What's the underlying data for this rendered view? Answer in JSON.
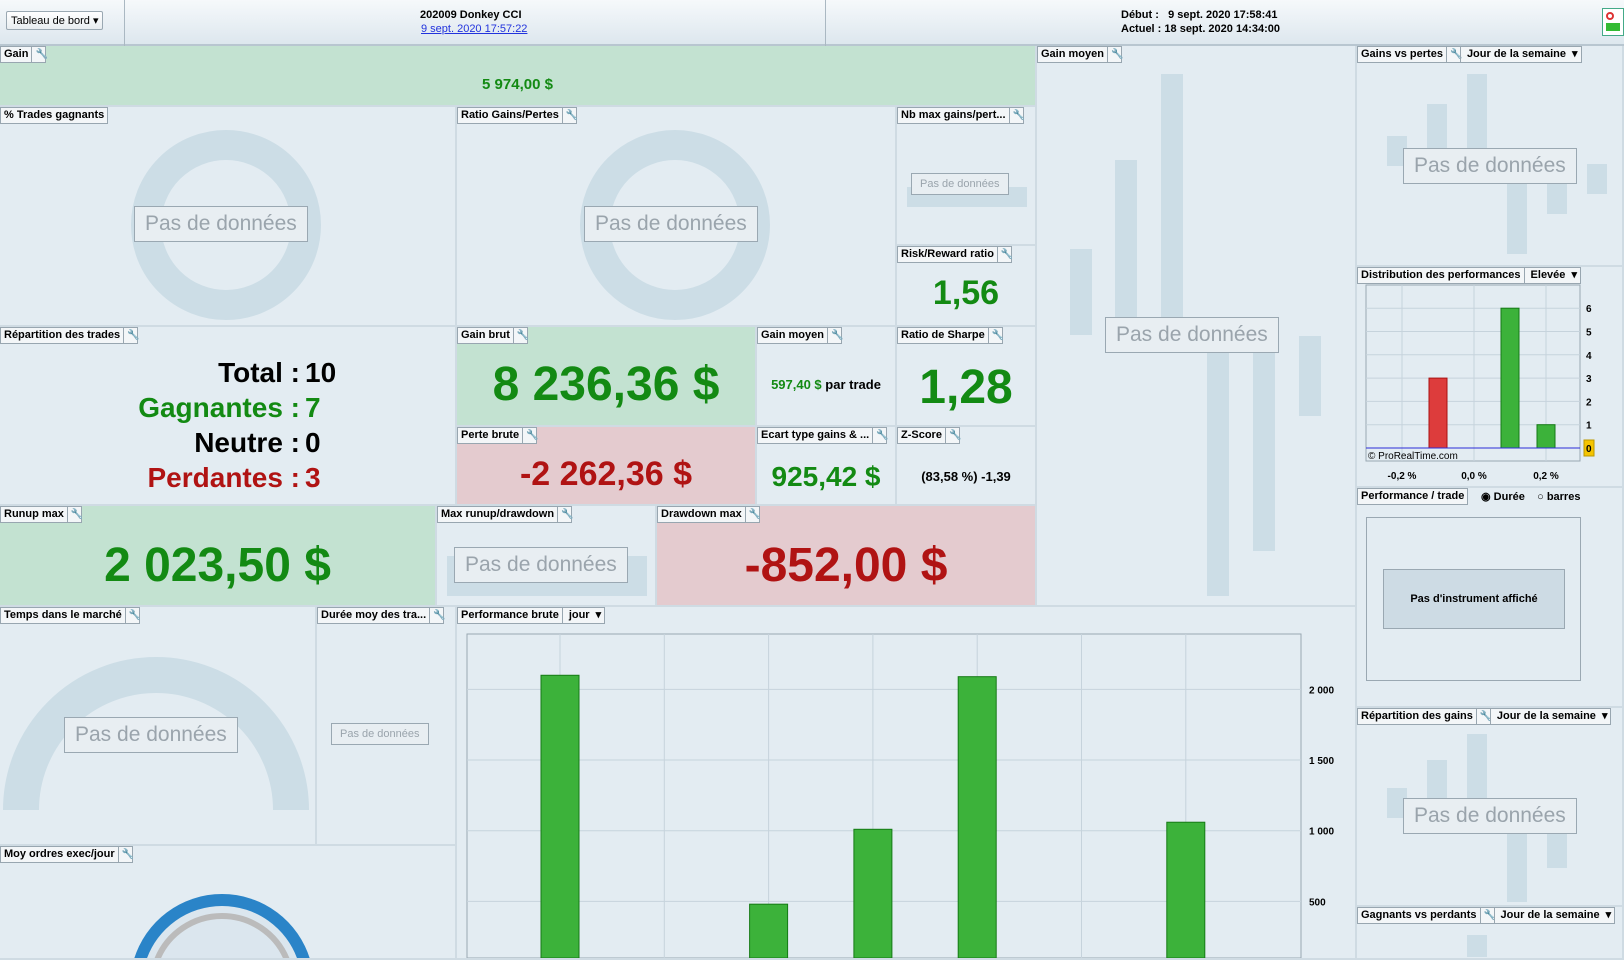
{
  "header": {
    "menu": "Tableau de bord",
    "system_name": "202009 Donkey CCI",
    "system_date": "9 sept. 2020 17:57:22",
    "start_label": "Début :",
    "start_value": "9 sept. 2020 17:58:41",
    "current_label": "Actuel :",
    "current_value": "18 sept. 2020 14:34:00"
  },
  "no_data": "Pas de données",
  "panels": {
    "gain": {
      "title": "Gain",
      "value": "5 974,00 $"
    },
    "win_pct": {
      "title": "% Trades gagnants"
    },
    "ratio": {
      "title": "Ratio Gains/Pertes"
    },
    "nb_max": {
      "title": "Nb max gains/pert..."
    },
    "risk_reward": {
      "title": "Risk/Reward ratio",
      "value": "1,56"
    },
    "gain_moyen_chart": {
      "title": "Gain moyen"
    },
    "gains_vs_pertes": {
      "title": "Gains vs pertes",
      "select": "Jour de la semaine"
    },
    "repartition_trades": {
      "title": "Répartition des trades",
      "total_label": "Total :",
      "total": "10",
      "win_label": "Gagnantes :",
      "win": "7",
      "neutral_label": "Neutre :",
      "neutral": "0",
      "lose_label": "Perdantes :",
      "lose": "3"
    },
    "gain_brut": {
      "title": "Gain brut",
      "value": "8 236,36 $"
    },
    "gain_moyen": {
      "title": "Gain moyen",
      "value": "597,40 $",
      "suffix": "par trade"
    },
    "sharpe": {
      "title": "Ratio de Sharpe",
      "value": "1,28"
    },
    "perte_brute": {
      "title": "Perte brute",
      "value": "-2 262,36 $"
    },
    "ecart_type": {
      "title": "Ecart type gains & ...",
      "value": "925,42 $"
    },
    "zscore": {
      "title": "Z-Score",
      "value": "(83,58 %) -1,39"
    },
    "runup": {
      "title": "Runup max",
      "value": "2 023,50 $"
    },
    "max_runup_dd": {
      "title": "Max runup/drawdown"
    },
    "drawdown": {
      "title": "Drawdown max",
      "value": "-852,00 $"
    },
    "temps_marche": {
      "title": "Temps dans le marché"
    },
    "duree_moy": {
      "title": "Durée moy des tra..."
    },
    "moy_ordres": {
      "title": "Moy ordres exec/jour"
    },
    "perf_brute": {
      "title": "Performance brute",
      "select": "jour"
    },
    "distribution": {
      "title": "Distribution des performances",
      "select": "Elevée",
      "watermark": "© ProRealTime.com"
    },
    "perf_trade": {
      "title": "Performance / trade",
      "opt1": "Durée",
      "opt2": "barres",
      "message": "Pas d'instrument affiché"
    },
    "repartition_gains": {
      "title": "Répartition des gains",
      "select": "Jour de la semaine"
    },
    "gagnants_perdants": {
      "title": "Gagnants vs perdants",
      "select": "Jour de la semaine"
    }
  },
  "chart_data": [
    {
      "type": "bar",
      "title": "Performance brute",
      "x": [
        0,
        1,
        2,
        3,
        4,
        5,
        6
      ],
      "values": [
        2100,
        null,
        480,
        1010,
        2090,
        null,
        1060
      ],
      "ylim": [
        0,
        2300
      ],
      "yticks": [
        500,
        1000,
        1500,
        2000
      ],
      "ytick_labels": [
        "500",
        "1 000",
        "1 500",
        "2 000"
      ],
      "color": "#3cb23a"
    },
    {
      "type": "bar",
      "title": "Distribution des performances",
      "x": [
        -0.1,
        0.1,
        0.2
      ],
      "values": [
        3,
        6,
        1
      ],
      "colors": [
        "#dd3c3c",
        "#3cb23a",
        "#3cb23a"
      ],
      "xticks": [
        -0.2,
        0.0,
        0.2
      ],
      "xtick_labels": [
        "-0,2 %",
        "0,0 %",
        "0,2 %"
      ],
      "yticks": [
        0,
        1,
        2,
        3,
        4,
        5,
        6
      ],
      "ylim": [
        0,
        6.5
      ]
    }
  ]
}
